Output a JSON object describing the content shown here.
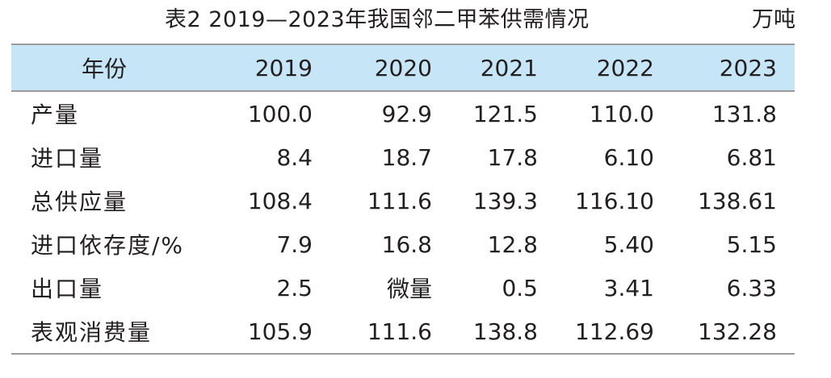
{
  "caption": {
    "title": "表2  2019—2023年我国邻二甲苯供需情况",
    "unit": "万吨"
  },
  "table": {
    "headers": [
      "年份",
      "2019",
      "2020",
      "2021",
      "2022",
      "2023"
    ],
    "rows": [
      {
        "label": "产量",
        "values": [
          "100.0",
          "92.9",
          "121.5",
          "110.0",
          "131.8"
        ]
      },
      {
        "label": "进口量",
        "values": [
          "8.4",
          "18.7",
          "17.8",
          "6.10",
          "6.81"
        ]
      },
      {
        "label": "总供应量",
        "values": [
          "108.4",
          "111.6",
          "139.3",
          "116.10",
          "138.61"
        ]
      },
      {
        "label": "进口依存度/%",
        "values": [
          "7.9",
          "16.8",
          "12.8",
          "5.40",
          "5.15"
        ]
      },
      {
        "label": "出口量",
        "values": [
          "2.5",
          "微量",
          "0.5",
          "3.41",
          "6.33"
        ]
      },
      {
        "label": "表观消费量",
        "values": [
          "105.9",
          "111.6",
          "138.8",
          "112.69",
          "132.28"
        ]
      }
    ]
  },
  "colors": {
    "header_background": "#c6e5f7",
    "rule": "#9a9a9a",
    "text": "#231f20"
  }
}
